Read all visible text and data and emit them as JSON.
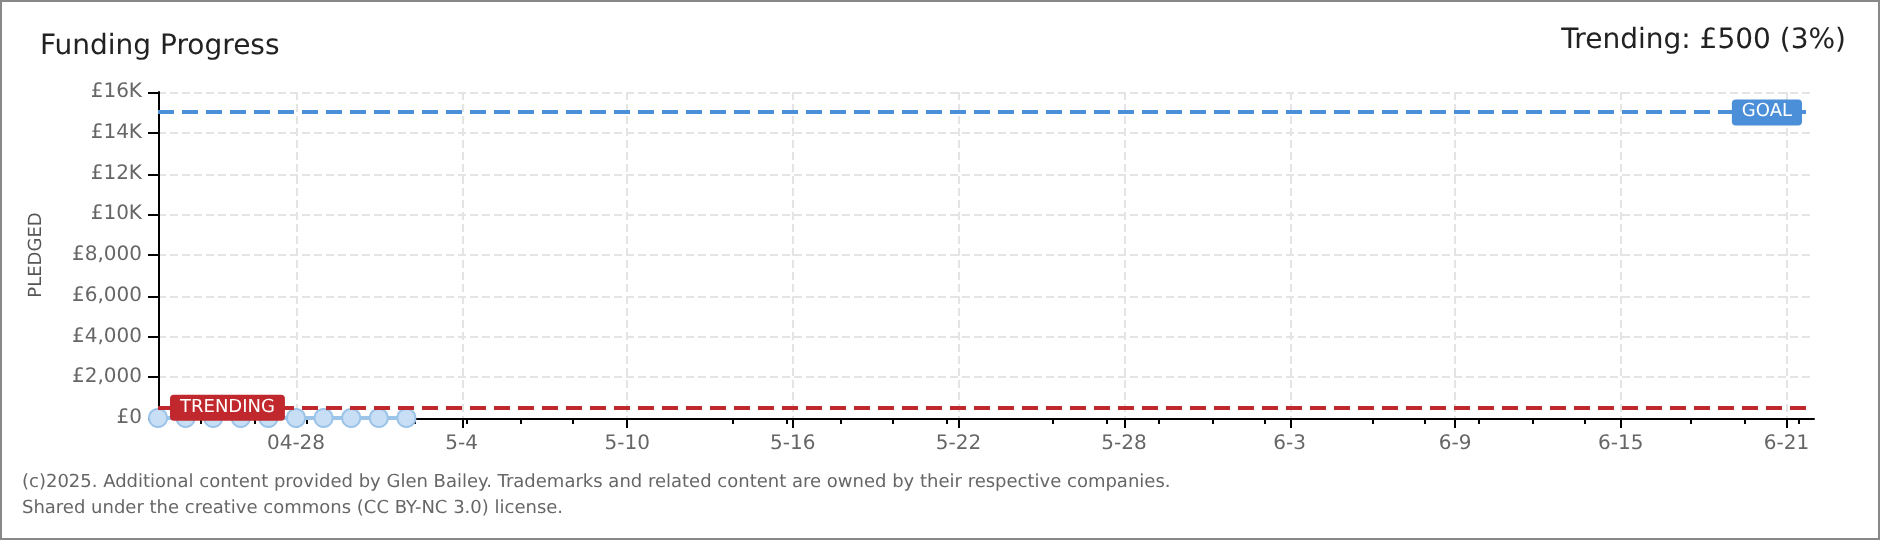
{
  "chart_data": {
    "type": "line",
    "title": "Funding Progress",
    "ylabel": "PLEDGED",
    "x": [
      "--04-23",
      "--04-24",
      "--04-25",
      "--04-26",
      "--04-27",
      "--04-28",
      "--04-29",
      "--04-30",
      "--05-01",
      "--05-02"
    ],
    "series": [
      {
        "color": "#9cc3e8",
        "values": [
          0,
          0,
          0,
          0,
          0,
          0,
          0,
          0,
          0,
          0
        ]
      }
    ],
    "marker": "circle",
    "xlim": [
      "--04-23",
      "--06-22"
    ],
    "xticks": [
      {
        "value": "--04-28",
        "label": "04-28"
      },
      {
        "value": "--05-04",
        "label": "5-4"
      },
      {
        "value": "--05-10",
        "label": "5-10"
      },
      {
        "value": "--05-16",
        "label": "5-16"
      },
      {
        "value": "--05-22",
        "label": "5-22"
      },
      {
        "value": "--05-28",
        "label": "5-28"
      },
      {
        "value": "--06-03",
        "label": "6-3"
      },
      {
        "value": "--06-09",
        "label": "6-9"
      },
      {
        "value": "--06-15",
        "label": "6-15"
      },
      {
        "value": "--06-21",
        "label": "6-21"
      }
    ],
    "ylim": [
      0,
      16000
    ],
    "yticks": [
      {
        "value": 0,
        "label": "£0"
      },
      {
        "value": 2000,
        "label": "£2,000"
      },
      {
        "value": 4000,
        "label": "£4,000"
      },
      {
        "value": 6000,
        "label": "£6,000"
      },
      {
        "value": 8000,
        "label": "£8,000"
      },
      {
        "value": 10000,
        "label": "£10K"
      },
      {
        "value": 12000,
        "label": "£12K"
      },
      {
        "value": 14000,
        "label": "£14K"
      },
      {
        "value": 16000,
        "label": "£16K"
      }
    ],
    "ref_lines": [
      {
        "axis": "y",
        "value": 15000,
        "label": "GOAL",
        "color": "#4a8fd8",
        "line_style": "dashed"
      },
      {
        "axis": "y",
        "value": 500,
        "label": "TRENDING",
        "color": "#c0282d",
        "line_style": "dashed"
      }
    ],
    "grid": true,
    "annotations": [
      "Trending: £500 (3%)",
      "(c)2025. Additional content provided by Glen Bailey. Trademarks and related content are owned by their respective companies.",
      "Shared under the creative commons (CC BY-NC 3.0) license."
    ]
  }
}
